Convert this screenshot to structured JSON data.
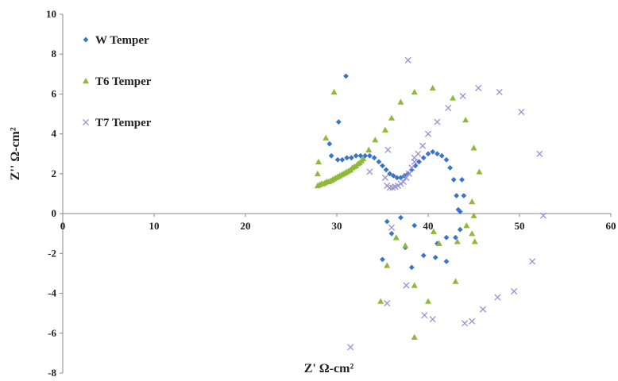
{
  "chart_data": {
    "type": "scatter",
    "xlabel": "Z' Ω-cm²",
    "ylabel": "Z'' Ω-cm²",
    "xlim": [
      0,
      60
    ],
    "ylim": [
      -8,
      10
    ],
    "x_ticks": [
      "0",
      "10",
      "20",
      "30",
      "40",
      "50",
      "60"
    ],
    "y_ticks": [
      "-8",
      "-6",
      "-4",
      "-2",
      "0",
      "2",
      "4",
      "6",
      "8",
      "10"
    ],
    "grid": false,
    "legend_position": "top-left",
    "series": [
      {
        "name": "W Temper",
        "marker": "diamond",
        "color": "#3a74c8",
        "points": [
          [
            30.1,
            2.7
          ],
          [
            30.6,
            2.7
          ],
          [
            31.1,
            2.8
          ],
          [
            31.6,
            2.8
          ],
          [
            32.1,
            2.9
          ],
          [
            32.6,
            2.9
          ],
          [
            33.1,
            2.9
          ],
          [
            33.6,
            2.9
          ],
          [
            34.1,
            2.8
          ],
          [
            34.6,
            2.6
          ],
          [
            35.0,
            2.4
          ],
          [
            35.4,
            2.2
          ],
          [
            35.8,
            2.0
          ],
          [
            36.2,
            1.9
          ],
          [
            36.6,
            1.8
          ],
          [
            37.0,
            1.8
          ],
          [
            37.4,
            1.9
          ],
          [
            37.8,
            2.0
          ],
          [
            38.2,
            2.2
          ],
          [
            38.6,
            2.4
          ],
          [
            39.0,
            2.6
          ],
          [
            39.5,
            2.8
          ],
          [
            40.0,
            3.0
          ],
          [
            40.5,
            3.1
          ],
          [
            41.0,
            3.0
          ],
          [
            41.5,
            2.9
          ],
          [
            42.0,
            2.7
          ],
          [
            42.4,
            2.3
          ],
          [
            42.8,
            1.7
          ],
          [
            43.1,
            0.9
          ],
          [
            43.3,
            0.2
          ],
          [
            29.4,
            2.9
          ],
          [
            29.2,
            3.5
          ],
          [
            30.2,
            4.6
          ],
          [
            31.0,
            6.9
          ],
          [
            43.9,
            0.9
          ],
          [
            43.7,
            1.7
          ],
          [
            43.5,
            0.1
          ],
          [
            35.5,
            -0.4
          ],
          [
            36.0,
            -1.0
          ],
          [
            37.0,
            -0.2
          ],
          [
            38.5,
            -0.6
          ],
          [
            41.0,
            -1.5
          ],
          [
            42.0,
            -1.2
          ],
          [
            43.0,
            -1.2
          ],
          [
            43.5,
            -0.8
          ],
          [
            35.0,
            -2.3
          ],
          [
            37.5,
            -1.7
          ],
          [
            38.2,
            -2.7
          ],
          [
            39.5,
            -2.1
          ],
          [
            40.8,
            -2.2
          ],
          [
            42.0,
            -2.4
          ]
        ]
      },
      {
        "name": "T6 Temper",
        "marker": "triangle",
        "color": "#8fb93a",
        "points": [
          [
            27.9,
            1.4
          ],
          [
            28.1,
            1.45
          ],
          [
            28.3,
            1.5
          ],
          [
            28.5,
            1.5
          ],
          [
            28.7,
            1.55
          ],
          [
            28.9,
            1.6
          ],
          [
            29.1,
            1.6
          ],
          [
            29.3,
            1.65
          ],
          [
            29.5,
            1.7
          ],
          [
            29.7,
            1.75
          ],
          [
            29.9,
            1.8
          ],
          [
            30.1,
            1.85
          ],
          [
            30.3,
            1.9
          ],
          [
            30.5,
            1.95
          ],
          [
            30.7,
            2.0
          ],
          [
            30.9,
            2.05
          ],
          [
            31.1,
            2.1
          ],
          [
            31.3,
            2.15
          ],
          [
            31.5,
            2.2
          ],
          [
            31.7,
            2.3
          ],
          [
            31.9,
            2.35
          ],
          [
            32.1,
            2.4
          ],
          [
            32.3,
            2.5
          ],
          [
            32.5,
            2.55
          ],
          [
            32.7,
            2.65
          ],
          [
            32.9,
            2.75
          ],
          [
            27.9,
            2.0
          ],
          [
            28.0,
            2.6
          ],
          [
            28.8,
            3.8
          ],
          [
            29.7,
            6.1
          ],
          [
            33.5,
            3.2
          ],
          [
            34.2,
            3.7
          ],
          [
            35.3,
            4.2
          ],
          [
            36.0,
            4.8
          ],
          [
            37.0,
            5.6
          ],
          [
            38.5,
            6.1
          ],
          [
            40.5,
            6.3
          ],
          [
            42.7,
            5.8
          ],
          [
            44.1,
            4.7
          ],
          [
            45.0,
            3.3
          ],
          [
            45.6,
            2.1
          ],
          [
            44.8,
            0.6
          ],
          [
            45.0,
            -0.1
          ],
          [
            44.2,
            -0.6
          ],
          [
            44.8,
            -1.0
          ],
          [
            45.1,
            -1.4
          ],
          [
            43.2,
            -1.4
          ],
          [
            41.2,
            -1.5
          ],
          [
            40.6,
            -0.9
          ],
          [
            36.5,
            -1.2
          ],
          [
            37.5,
            -1.6
          ],
          [
            35.5,
            -2.6
          ],
          [
            38.5,
            -3.6
          ],
          [
            43.0,
            -3.4
          ],
          [
            34.8,
            -4.4
          ],
          [
            40.0,
            -4.4
          ],
          [
            38.5,
            -6.2
          ]
        ]
      },
      {
        "name": "T7 Temper",
        "marker": "x",
        "color": "#9b8fd8",
        "points": [
          [
            33.6,
            2.1
          ],
          [
            35.5,
            1.4
          ],
          [
            35.8,
            1.3
          ],
          [
            36.1,
            1.3
          ],
          [
            36.4,
            1.35
          ],
          [
            36.7,
            1.4
          ],
          [
            37.0,
            1.5
          ],
          [
            37.3,
            1.6
          ],
          [
            37.6,
            1.8
          ],
          [
            37.9,
            2.0
          ],
          [
            38.2,
            2.3
          ],
          [
            38.5,
            2.6
          ],
          [
            38.9,
            3.0
          ],
          [
            39.4,
            3.4
          ],
          [
            40.0,
            4.0
          ],
          [
            41.0,
            4.6
          ],
          [
            42.2,
            5.3
          ],
          [
            43.8,
            5.9
          ],
          [
            45.5,
            6.3
          ],
          [
            47.8,
            6.1
          ],
          [
            50.2,
            5.1
          ],
          [
            52.2,
            3.0
          ],
          [
            52.6,
            -0.1
          ],
          [
            51.4,
            -2.4
          ],
          [
            49.4,
            -3.9
          ],
          [
            47.6,
            -4.2
          ],
          [
            46.0,
            -4.8
          ],
          [
            44.8,
            -5.4
          ],
          [
            44.0,
            -5.5
          ],
          [
            39.6,
            -5.1
          ],
          [
            40.5,
            -5.3
          ],
          [
            37.6,
            -3.6
          ],
          [
            35.5,
            -4.5
          ],
          [
            31.5,
            -6.7
          ],
          [
            36.0,
            -0.7
          ],
          [
            35.6,
            3.2
          ],
          [
            37.8,
            7.7
          ],
          [
            35.3,
            1.8
          ],
          [
            38.5,
            2.8
          ]
        ]
      }
    ]
  }
}
